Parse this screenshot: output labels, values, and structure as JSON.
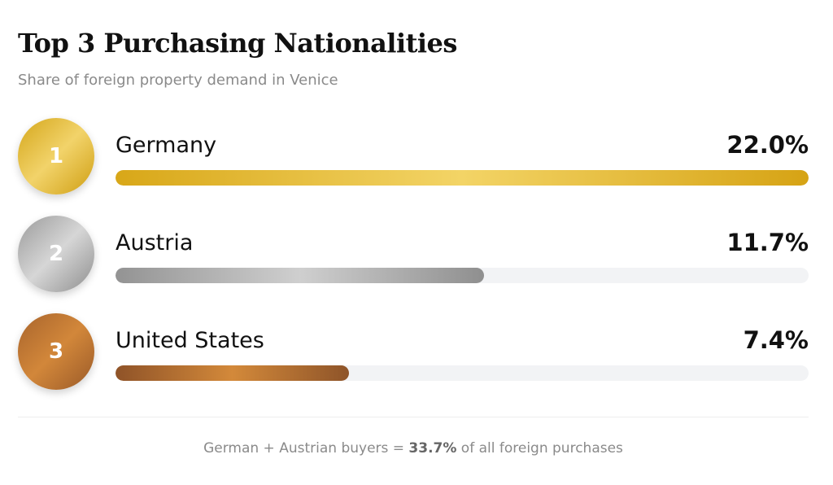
{
  "chart_data": {
    "type": "bar",
    "orientation": "horizontal",
    "title": "Top 3 Purchasing Nationalities",
    "subtitle": "Share of foreign property demand in Venice",
    "categories": [
      "Germany",
      "Austria",
      "United States"
    ],
    "values": [
      22.0,
      11.7,
      7.4
    ],
    "value_labels": [
      "22.0%",
      "11.7%",
      "7.4%"
    ],
    "ranks": [
      "1",
      "2",
      "3"
    ],
    "medal_styles": [
      "gold",
      "silver",
      "bronze"
    ],
    "xlim": [
      0,
      22.0
    ],
    "grid": false,
    "colors": {
      "gold": "#e2b52c",
      "silver": "#a8a8a8",
      "bronze": "#c07a34",
      "track": "#f2f3f5"
    }
  },
  "footer": {
    "prefix": "German + Austrian buyers = ",
    "highlight": "33.7%",
    "suffix": " of all foreign purchases"
  }
}
